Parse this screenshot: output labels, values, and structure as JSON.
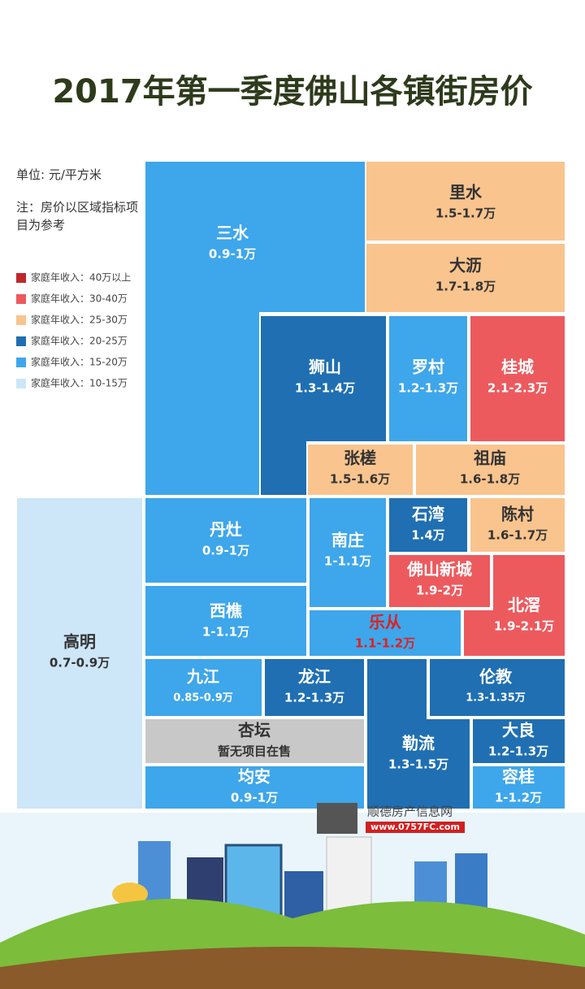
{
  "title": "2017年第一季度佛山各镇街房价",
  "unit": "单位: 元/平方米",
  "note": "注：房价以区域指标项目为参考",
  "legend": [
    {
      "label": "家庭年收入：40万以上",
      "color": "#c0272d"
    },
    {
      "label": "家庭年收入：30-40万",
      "color": "#ec5a5e"
    },
    {
      "label": "家庭年收入：25-30万",
      "color": "#f9c48e"
    },
    {
      "label": "家庭年收入：20-25万",
      "color": "#1f6fb2"
    },
    {
      "label": "家庭年收入：15-20万",
      "color": "#3ea6ea"
    },
    {
      "label": "家庭年收入：10-15万",
      "color": "#cde6f8"
    }
  ],
  "tiles": [
    {
      "name": "三水",
      "price": "0.9-1万",
      "color": "#3ea6ea"
    },
    {
      "name": "里水",
      "price": "1.5-1.7万",
      "color": "#f9c48e"
    },
    {
      "name": "大沥",
      "price": "1.7-1.8万",
      "color": "#f9c48e"
    },
    {
      "name": "狮山",
      "price": "1.3-1.4万",
      "color": "#1f6fb2"
    },
    {
      "name": "罗村",
      "price": "1.2-1.3万",
      "color": "#3ea6ea"
    },
    {
      "name": "桂城",
      "price": "2.1-2.3万",
      "color": "#ec5a5e"
    },
    {
      "name": "张槎",
      "price": "1.5-1.6万",
      "color": "#f9c48e"
    },
    {
      "name": "祖庙",
      "price": "1.6-1.8万",
      "color": "#f9c48e"
    },
    {
      "name": "高明",
      "price": "0.7-0.9万",
      "color": "#cde6f8"
    },
    {
      "name": "丹灶",
      "price": "0.9-1万",
      "color": "#3ea6ea"
    },
    {
      "name": "南庄",
      "price": "1-1.1万",
      "color": "#3ea6ea"
    },
    {
      "name": "石湾",
      "price": "1.4万",
      "color": "#1f6fb2"
    },
    {
      "name": "陈村",
      "price": "1.6-1.7万",
      "color": "#f9c48e"
    },
    {
      "name": "佛山新城",
      "price": "1.9-2万",
      "color": "#ec5a5e"
    },
    {
      "name": "北滘",
      "price": "1.9-2.1万",
      "color": "#ec5a5e"
    },
    {
      "name": "西樵",
      "price": "1-1.1万",
      "color": "#3ea6ea"
    },
    {
      "name": "乐从",
      "price": "1.1-1.2万",
      "color": "#3ea6ea",
      "text_color": "#e02020"
    },
    {
      "name": "九江",
      "price": "0.85-0.9万",
      "color": "#3ea6ea"
    },
    {
      "name": "龙江",
      "price": "1.2-1.3万",
      "color": "#1f6fb2"
    },
    {
      "name": "勒流",
      "price": "1.3-1.5万",
      "color": "#1f6fb2"
    },
    {
      "name": "伦教",
      "price": "1.3-1.35万",
      "color": "#1f6fb2"
    },
    {
      "name": "杏坛",
      "price": "暂无项目在售",
      "color": "#c8c8c8"
    },
    {
      "name": "大良",
      "price": "1.2-1.3万",
      "color": "#1f6fb2"
    },
    {
      "name": "均安",
      "price": "0.9-1万",
      "color": "#3ea6ea"
    },
    {
      "name": "容桂",
      "price": "1-1.2万",
      "color": "#3ea6ea"
    }
  ],
  "logo": {
    "name": "顺德房产信息网",
    "url": "www.0757FC.com"
  }
}
